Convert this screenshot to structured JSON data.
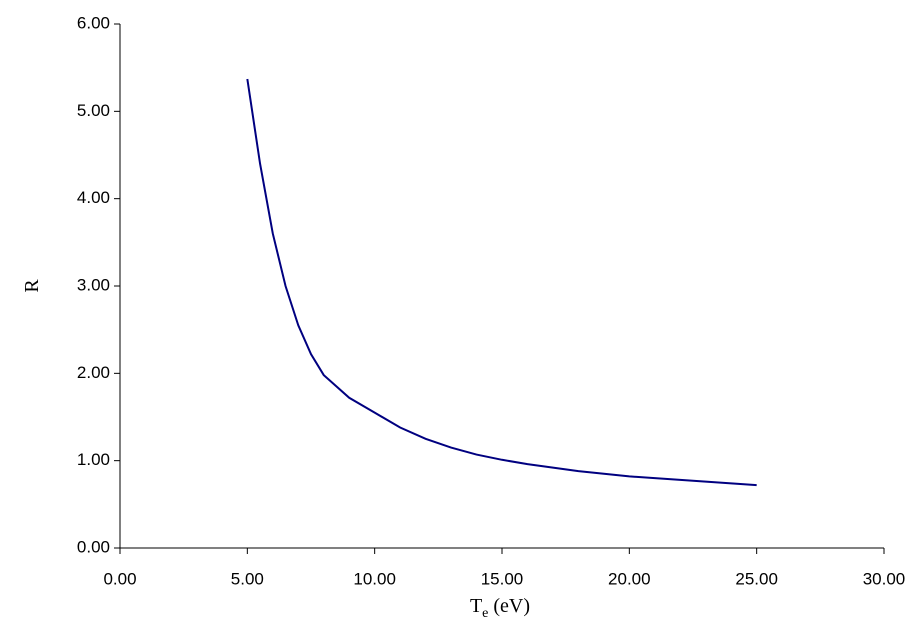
{
  "chart_data": {
    "type": "line",
    "xlabel": [
      "T",
      "e",
      "(eV)"
    ],
    "ylabel": "R",
    "x": [
      5,
      5.5,
      6,
      6.5,
      7,
      7.5,
      8,
      9,
      10,
      11,
      12,
      13,
      14,
      15,
      16,
      17,
      18,
      19,
      20,
      21,
      22,
      23,
      24,
      25
    ],
    "values": [
      5.37,
      4.4,
      3.6,
      3.0,
      2.55,
      2.22,
      1.98,
      1.72,
      1.55,
      1.38,
      1.25,
      1.15,
      1.07,
      1.01,
      0.96,
      0.92,
      0.88,
      0.85,
      0.82,
      0.8,
      0.78,
      0.76,
      0.74,
      0.72
    ],
    "color": "#000080",
    "xlim": [
      0,
      30
    ],
    "xticks": [
      {
        "value": 0,
        "label": "0.00"
      },
      {
        "value": 5,
        "label": "5.00"
      },
      {
        "value": 10,
        "label": "10.00"
      },
      {
        "value": 15,
        "label": "15.00"
      },
      {
        "value": 20,
        "label": "20.00"
      },
      {
        "value": 25,
        "label": "25.00"
      },
      {
        "value": 30,
        "label": "30.00"
      }
    ],
    "ylim": [
      0,
      6
    ],
    "yticks": [
      {
        "value": 0,
        "label": "0.00"
      },
      {
        "value": 1,
        "label": "1.00"
      },
      {
        "value": 2,
        "label": "2.00"
      },
      {
        "value": 3,
        "label": "3.00"
      },
      {
        "value": 4,
        "label": "4.00"
      },
      {
        "value": 5,
        "label": "5.00"
      },
      {
        "value": 6,
        "label": "6.00"
      }
    ],
    "grid": false
  }
}
